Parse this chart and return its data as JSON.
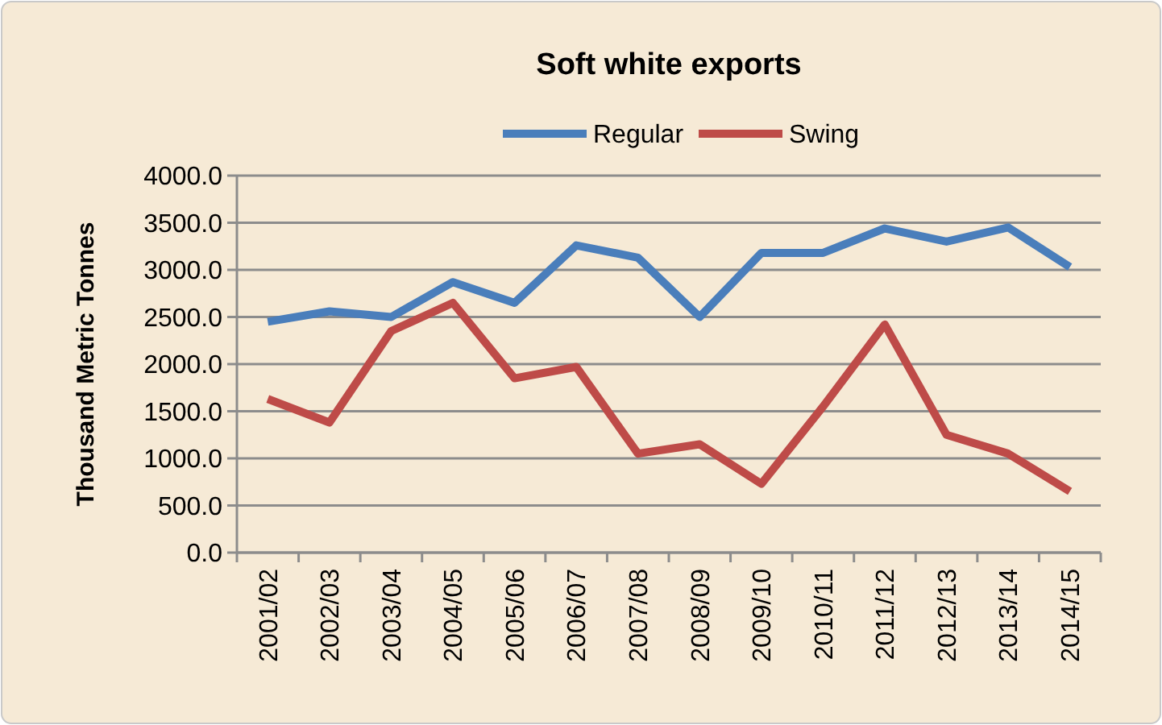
{
  "chart_data": {
    "type": "line",
    "title": "Soft white exports",
    "ylabel": "Thousand Metric Tonnes",
    "categories": [
      "2001/02",
      "2002/03",
      "2003/04",
      "2004/05",
      "2005/06",
      "2006/07",
      "2007/08",
      "2008/09",
      "2009/10",
      "2010/11",
      "2011/12",
      "2012/13",
      "2013/14",
      "2014/15"
    ],
    "series": [
      {
        "name": "Regular",
        "color": "#4a7ebb",
        "values": [
          2450,
          2560,
          2500,
          2870,
          2650,
          3260,
          3130,
          2500,
          3180,
          3180,
          3440,
          3300,
          3450,
          3030
        ]
      },
      {
        "name": "Swing",
        "color": "#be4b48",
        "values": [
          1630,
          1380,
          2350,
          2650,
          1850,
          1970,
          1050,
          1150,
          730,
          1550,
          2420,
          1250,
          1050,
          650
        ]
      }
    ],
    "ylim": [
      0,
      4000
    ],
    "yticks": [
      {
        "value": 0,
        "label": "0.0"
      },
      {
        "value": 500,
        "label": "500.0"
      },
      {
        "value": 1000,
        "label": "1000.0"
      },
      {
        "value": 1500,
        "label": "1500.0"
      },
      {
        "value": 2000,
        "label": "2000.0"
      },
      {
        "value": 2500,
        "label": "2500.0"
      },
      {
        "value": 3000,
        "label": "3000.0"
      },
      {
        "value": 3500,
        "label": "3500.0"
      },
      {
        "value": 4000,
        "label": "4000.0"
      }
    ],
    "grid": "y",
    "legend": "top",
    "marker": "none",
    "line_style": "solid"
  }
}
